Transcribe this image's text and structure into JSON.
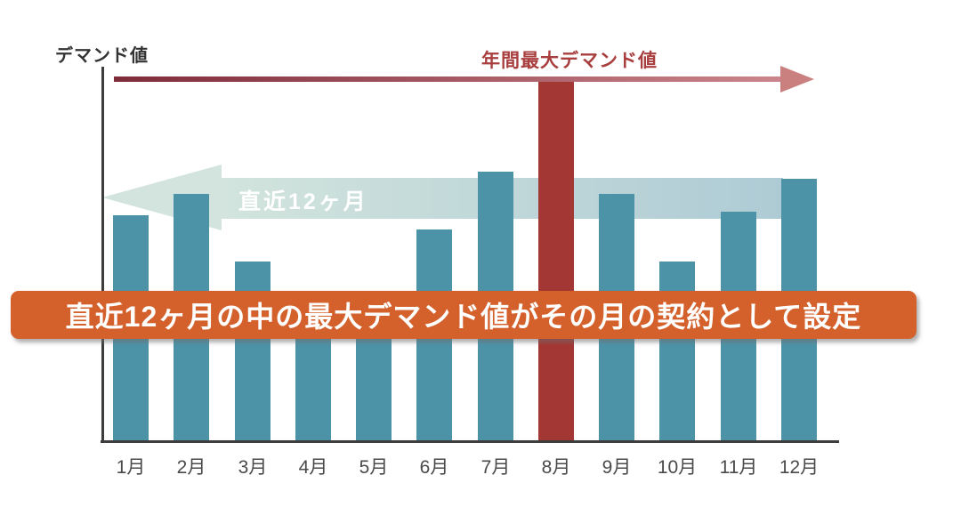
{
  "colors": {
    "bar_teal": "#4d93a8",
    "bar_red": "#a33733",
    "annual_line_dark": "#7e2c3a",
    "annual_line_light": "#cb858c",
    "annual_arrowhead": "#c9807f",
    "annual_label_text": "#a93e3e",
    "recent_band_left": "#d2e4dd",
    "recent_band_right": "#aecbd5",
    "banner_bg": "#d4612c",
    "banner_text": "#ffffff",
    "axis": "#3d3d3d",
    "tick_label": "#4a4a4a"
  },
  "chart_data": {
    "type": "bar",
    "title": "",
    "xlabel": "",
    "ylabel": "デマンド値",
    "ylim": [
      0,
      100
    ],
    "grid": false,
    "legend": "none",
    "categories": [
      "1月",
      "2月",
      "3月",
      "4月",
      "5月",
      "6月",
      "7月",
      "8月",
      "9月",
      "10月",
      "11月",
      "12月"
    ],
    "values": [
      63,
      69,
      50,
      36,
      39,
      59,
      75,
      100,
      69,
      50,
      64,
      73
    ],
    "highlight_month": "8月",
    "highlight_meaning_label": "年間最大デマンド値",
    "annotations": {
      "annual_max_arrow_label": "年間最大デマンド値",
      "recent_12_months_arrow_label": "直近12ヶ月",
      "banner_text": "直近12ヶ月の中の最大デマンド値がその月の契約として設定"
    }
  }
}
